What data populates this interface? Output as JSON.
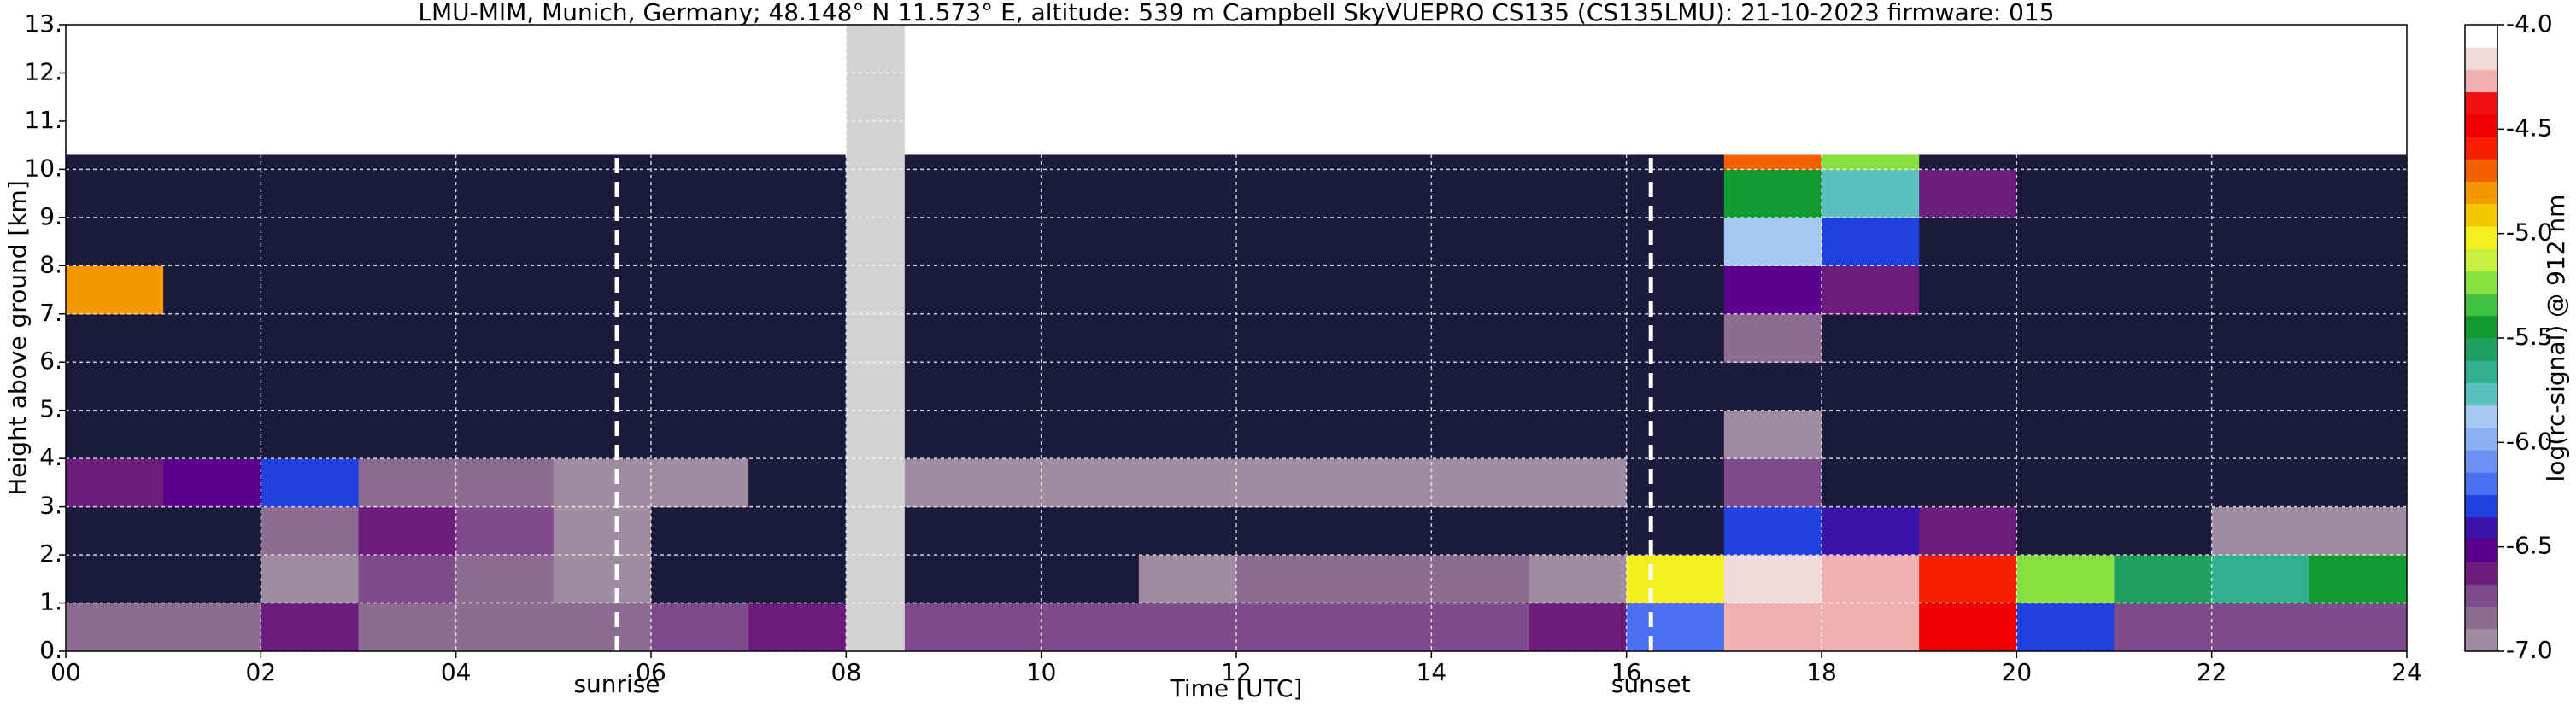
{
  "chart_data": {
    "type": "heatmap",
    "title": "LMU-MIM, Munich, Germany; 48.148° N 11.573° E, altitude: 539 m    Campbell SkyVUEPRO CS135 (CS135LMU): 21-10-2023    firmware: 015",
    "xlabel": "Time [UTC]",
    "ylabel": "Height above ground [km]",
    "colorbar_label": "log(rc-signal) @ 912 nm",
    "xlim": [
      0,
      24
    ],
    "ylim": [
      0,
      13
    ],
    "xticks": [
      {
        "value": 0,
        "label": "00"
      },
      {
        "value": 2,
        "label": "02"
      },
      {
        "value": 4,
        "label": "04"
      },
      {
        "value": 6,
        "label": "06"
      },
      {
        "value": 8,
        "label": "08"
      },
      {
        "value": 10,
        "label": "10"
      },
      {
        "value": 12,
        "label": "12"
      },
      {
        "value": 14,
        "label": "14"
      },
      {
        "value": 16,
        "label": "16"
      },
      {
        "value": 18,
        "label": "18"
      },
      {
        "value": 20,
        "label": "20"
      },
      {
        "value": 22,
        "label": "22"
      },
      {
        "value": 24,
        "label": "24"
      }
    ],
    "yticks": [
      {
        "value": 0,
        "label": "0."
      },
      {
        "value": 1,
        "label": "1."
      },
      {
        "value": 2,
        "label": "2."
      },
      {
        "value": 3,
        "label": "3."
      },
      {
        "value": 4,
        "label": "4."
      },
      {
        "value": 5,
        "label": "5."
      },
      {
        "value": 6,
        "label": "6."
      },
      {
        "value": 7,
        "label": "7."
      },
      {
        "value": 8,
        "label": "8."
      },
      {
        "value": 9,
        "label": "9."
      },
      {
        "value": 10,
        "label": "10."
      },
      {
        "value": 11,
        "label": "11."
      },
      {
        "value": 12,
        "label": "12."
      },
      {
        "value": 13,
        "label": "13."
      }
    ],
    "clim": [
      -7,
      -4
    ],
    "cticks": [
      {
        "value": -7,
        "label": "-7.0"
      },
      {
        "value": -6.5,
        "label": "-6.5"
      },
      {
        "value": -6,
        "label": "-6.0"
      },
      {
        "value": -5.5,
        "label": "-5.5"
      },
      {
        "value": -5,
        "label": "-5.0"
      },
      {
        "value": -4.5,
        "label": "-4.5"
      },
      {
        "value": -4,
        "label": "-4.0"
      }
    ],
    "colors": [
      "#a08ca0",
      "#8e6c92",
      "#7e4c8c",
      "#6c1c7c",
      "#5c008c",
      "#3a14a8",
      "#2040e0",
      "#4a70f0",
      "#6c90f4",
      "#8cb0f4",
      "#a8c8f4",
      "#5cc0c0",
      "#30b090",
      "#20a060",
      "#109a30",
      "#40c040",
      "#88e040",
      "#c8f040",
      "#f4f020",
      "#f4c800",
      "#f49800",
      "#f46000",
      "#f42000",
      "#f00000",
      "#f01010",
      "#f0b0b0",
      "#f0dada",
      "#ffffff"
    ],
    "under_color": "#1c1a3c",
    "grid": true,
    "x": [
      0,
      1,
      2,
      3,
      4,
      5,
      6,
      7,
      8,
      9,
      10,
      11,
      12,
      13,
      14,
      15,
      16,
      17,
      18,
      19,
      20,
      21,
      22,
      23,
      24
    ],
    "y": [
      0,
      1,
      2,
      3,
      4,
      5,
      6,
      7,
      8,
      9,
      10,
      10.3
    ],
    "z": [
      [
        -6.8,
        -6.8,
        -6.6,
        -6.8,
        -6.8,
        -6.8,
        -6.7,
        -6.6,
        -6.7,
        -6.7,
        -6.7,
        -6.7,
        -6.7,
        -6.7,
        -6.7,
        -6.6,
        -6.2,
        -4.3,
        -4.3,
        -4.5,
        -6.3,
        -6.7,
        -6.7,
        -6.7
      ],
      [
        -7.2,
        -7.2,
        -6.9,
        -6.7,
        -6.8,
        -6.9,
        -7.2,
        -7.2,
        -7.2,
        -7.2,
        -7.2,
        -6.9,
        -6.8,
        -6.8,
        -6.8,
        -6.9,
        -5.0,
        -4.2,
        -4.3,
        -4.6,
        -5.2,
        -5.6,
        -5.7,
        -5.5
      ],
      [
        -7.2,
        -7.2,
        -6.8,
        -6.6,
        -6.7,
        -6.9,
        -7.2,
        -7.2,
        -7.2,
        -7.2,
        -7.2,
        -7.2,
        -7.2,
        -7.2,
        -7.2,
        -7.2,
        -7.2,
        -6.3,
        -6.4,
        -6.6,
        -7.2,
        -7.2,
        -6.9,
        -6.9
      ],
      [
        -6.6,
        -6.5,
        -6.3,
        -6.8,
        -6.8,
        -6.9,
        -6.9,
        -7.2,
        -6.9,
        -6.9,
        -6.9,
        -6.9,
        -6.9,
        -6.9,
        -6.9,
        -6.9,
        -7.2,
        -6.7,
        -7.2,
        -7.2,
        -7.2,
        -7.2,
        -7.2,
        -7.2
      ],
      [
        -7.2,
        -7.2,
        -7.2,
        -7.2,
        -7.2,
        -7.2,
        -7.2,
        -7.2,
        -7.2,
        -7.2,
        -7.2,
        -7.2,
        -7.2,
        -7.2,
        -7.2,
        -7.2,
        -7.2,
        -6.9,
        -7.2,
        -7.2,
        -7.2,
        -7.2,
        -7.2,
        -7.2
      ],
      [
        -7.2,
        -7.2,
        -7.2,
        -7.2,
        -7.2,
        -7.2,
        -7.2,
        -7.2,
        -7.2,
        -7.2,
        -7.2,
        -7.2,
        -7.2,
        -7.2,
        -7.2,
        -7.2,
        -7.2,
        -7.2,
        -7.2,
        -7.2,
        -7.2,
        -7.2,
        -7.2,
        -7.2
      ],
      [
        -7.2,
        -7.2,
        -7.2,
        -7.2,
        -7.2,
        -7.2,
        -7.2,
        -7.2,
        -7.2,
        -7.2,
        -7.2,
        -7.2,
        -7.2,
        -7.2,
        -7.2,
        -7.2,
        -7.2,
        -6.8,
        -7.2,
        -7.2,
        -7.2,
        -7.2,
        -7.2,
        -7.2
      ],
      [
        -4.8,
        -7.2,
        -7.2,
        -7.2,
        -7.2,
        -7.2,
        -7.2,
        -7.2,
        -7.2,
        -7.2,
        -7.2,
        -7.2,
        -7.2,
        -7.2,
        -7.2,
        -7.2,
        -7.2,
        -6.5,
        -6.6,
        -7.2,
        -7.2,
        -7.2,
        -7.2,
        -7.2
      ],
      [
        -7.2,
        -7.2,
        -7.2,
        -7.2,
        -7.2,
        -7.2,
        -7.2,
        -7.2,
        -7.2,
        -7.2,
        -7.2,
        -7.2,
        -7.2,
        -7.2,
        -7.2,
        -7.2,
        -7.2,
        -5.9,
        -6.3,
        -7.2,
        -7.2,
        -7.2,
        -7.2,
        -7.2
      ],
      [
        -7.2,
        -7.2,
        -7.2,
        -7.2,
        -7.2,
        -7.2,
        -7.2,
        -7.2,
        -7.2,
        -7.2,
        -7.2,
        -7.2,
        -7.2,
        -7.2,
        -7.2,
        -7.2,
        -7.2,
        -5.5,
        -5.8,
        -6.6,
        -7.2,
        -7.2,
        -7.2,
        -7.2
      ],
      [
        -7.2,
        -7.2,
        -7.2,
        -7.2,
        -7.2,
        -7.2,
        -7.2,
        -7.2,
        -7.2,
        -7.2,
        -7.2,
        -7.2,
        -7.2,
        -7.2,
        -7.2,
        -7.2,
        -7.2,
        -4.7,
        -5.2,
        -7.2,
        -7.2,
        -7.2,
        -7.2,
        -7.2
      ]
    ],
    "gap": [
      8.0,
      8.6
    ],
    "gap_color": "#d3d3d3",
    "annotations": [
      {
        "x": 5.65,
        "label": "sunrise"
      },
      {
        "x": 16.25,
        "label": "sunset"
      }
    ]
  }
}
